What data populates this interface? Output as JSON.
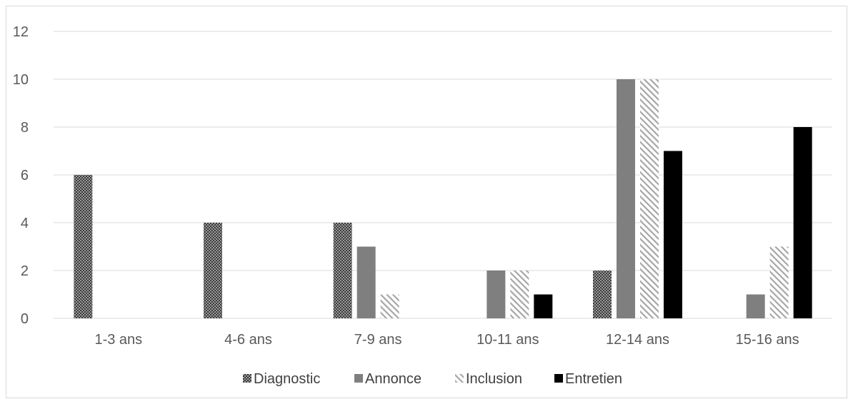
{
  "chart_data": {
    "type": "bar",
    "categories": [
      "1-3 ans",
      "4-6 ans",
      "7-9 ans",
      "10-11 ans",
      "12-14 ans",
      "15-16 ans"
    ],
    "series": [
      {
        "name": "Diagnostic",
        "values": [
          6,
          4,
          4,
          0,
          2,
          0
        ]
      },
      {
        "name": "Annonce",
        "values": [
          0,
          0,
          3,
          2,
          10,
          1
        ]
      },
      {
        "name": "Inclusion",
        "values": [
          0,
          0,
          1,
          2,
          10,
          3
        ]
      },
      {
        "name": "Entretien",
        "values": [
          0,
          0,
          0,
          1,
          7,
          8
        ]
      }
    ],
    "ylim": [
      0,
      12
    ],
    "yticks": [
      "0",
      "2",
      "4",
      "6",
      "8",
      "10",
      "12"
    ],
    "grid": true,
    "legend_position": "bottom"
  },
  "colors": {
    "Annonce": "#7f7f7f",
    "Entretien": "#000000",
    "grid": "#d9d9d9",
    "tick_text": "#595959"
  },
  "patterns": {
    "Diagnostic": "dense-dark-dots",
    "Inclusion": "light-diagonal-hatch"
  }
}
